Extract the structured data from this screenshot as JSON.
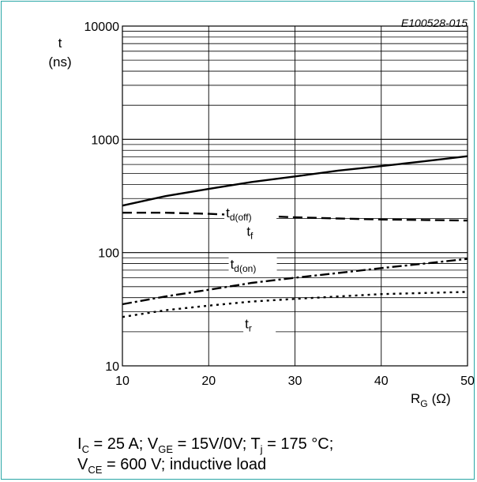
{
  "doc_id": "E100528-015",
  "chart_data": {
    "type": "line",
    "y_axis": {
      "symbol": "t",
      "unit": "(ns)",
      "scale": "log",
      "ticks": [
        10,
        100,
        1000,
        10000
      ],
      "range": [
        10,
        10000
      ]
    },
    "x_axis": {
      "symbol": "R",
      "subscript": "G",
      "unit": "(Ω)",
      "ticks": [
        10,
        20,
        30,
        40,
        50
      ],
      "range": [
        10,
        50
      ]
    },
    "grid": true,
    "series": [
      {
        "name": "t",
        "subscript": "d(off)",
        "style": "solid",
        "x": [
          10,
          15,
          20,
          25,
          30,
          35,
          40,
          45,
          50
        ],
        "y": [
          260,
          315,
          365,
          420,
          470,
          530,
          580,
          640,
          710
        ]
      },
      {
        "name": "t",
        "subscript": "f",
        "style": "dashed",
        "x": [
          10,
          15,
          20,
          25,
          30,
          35,
          40,
          45,
          50
        ],
        "y": [
          225,
          225,
          220,
          212,
          205,
          200,
          196,
          194,
          192
        ]
      },
      {
        "name": "t",
        "subscript": "d(on)",
        "style": "dashdot",
        "x": [
          10,
          15,
          20,
          25,
          30,
          35,
          40,
          45,
          50
        ],
        "y": [
          35,
          41,
          47,
          54,
          60,
          66,
          73,
          80,
          88
        ]
      },
      {
        "name": "t",
        "subscript": "r",
        "style": "dotted",
        "x": [
          10,
          15,
          20,
          25,
          30,
          35,
          40,
          45,
          50
        ],
        "y": [
          27,
          31,
          34,
          37,
          39,
          41,
          43,
          44,
          45
        ]
      }
    ]
  },
  "conditions": {
    "line1": [
      {
        "t": "I"
      },
      {
        "t": "C",
        "sub": true
      },
      {
        "t": " = 25 A; V"
      },
      {
        "t": "GE",
        "sub": true
      },
      {
        "t": " = 15V/0V; T"
      },
      {
        "t": "j",
        "sub": true
      },
      {
        "t": " = 175 °C;"
      }
    ],
    "line2": [
      {
        "t": "V"
      },
      {
        "t": "CE",
        "sub": true
      },
      {
        "t": " = 600 V; inductive load"
      }
    ]
  }
}
